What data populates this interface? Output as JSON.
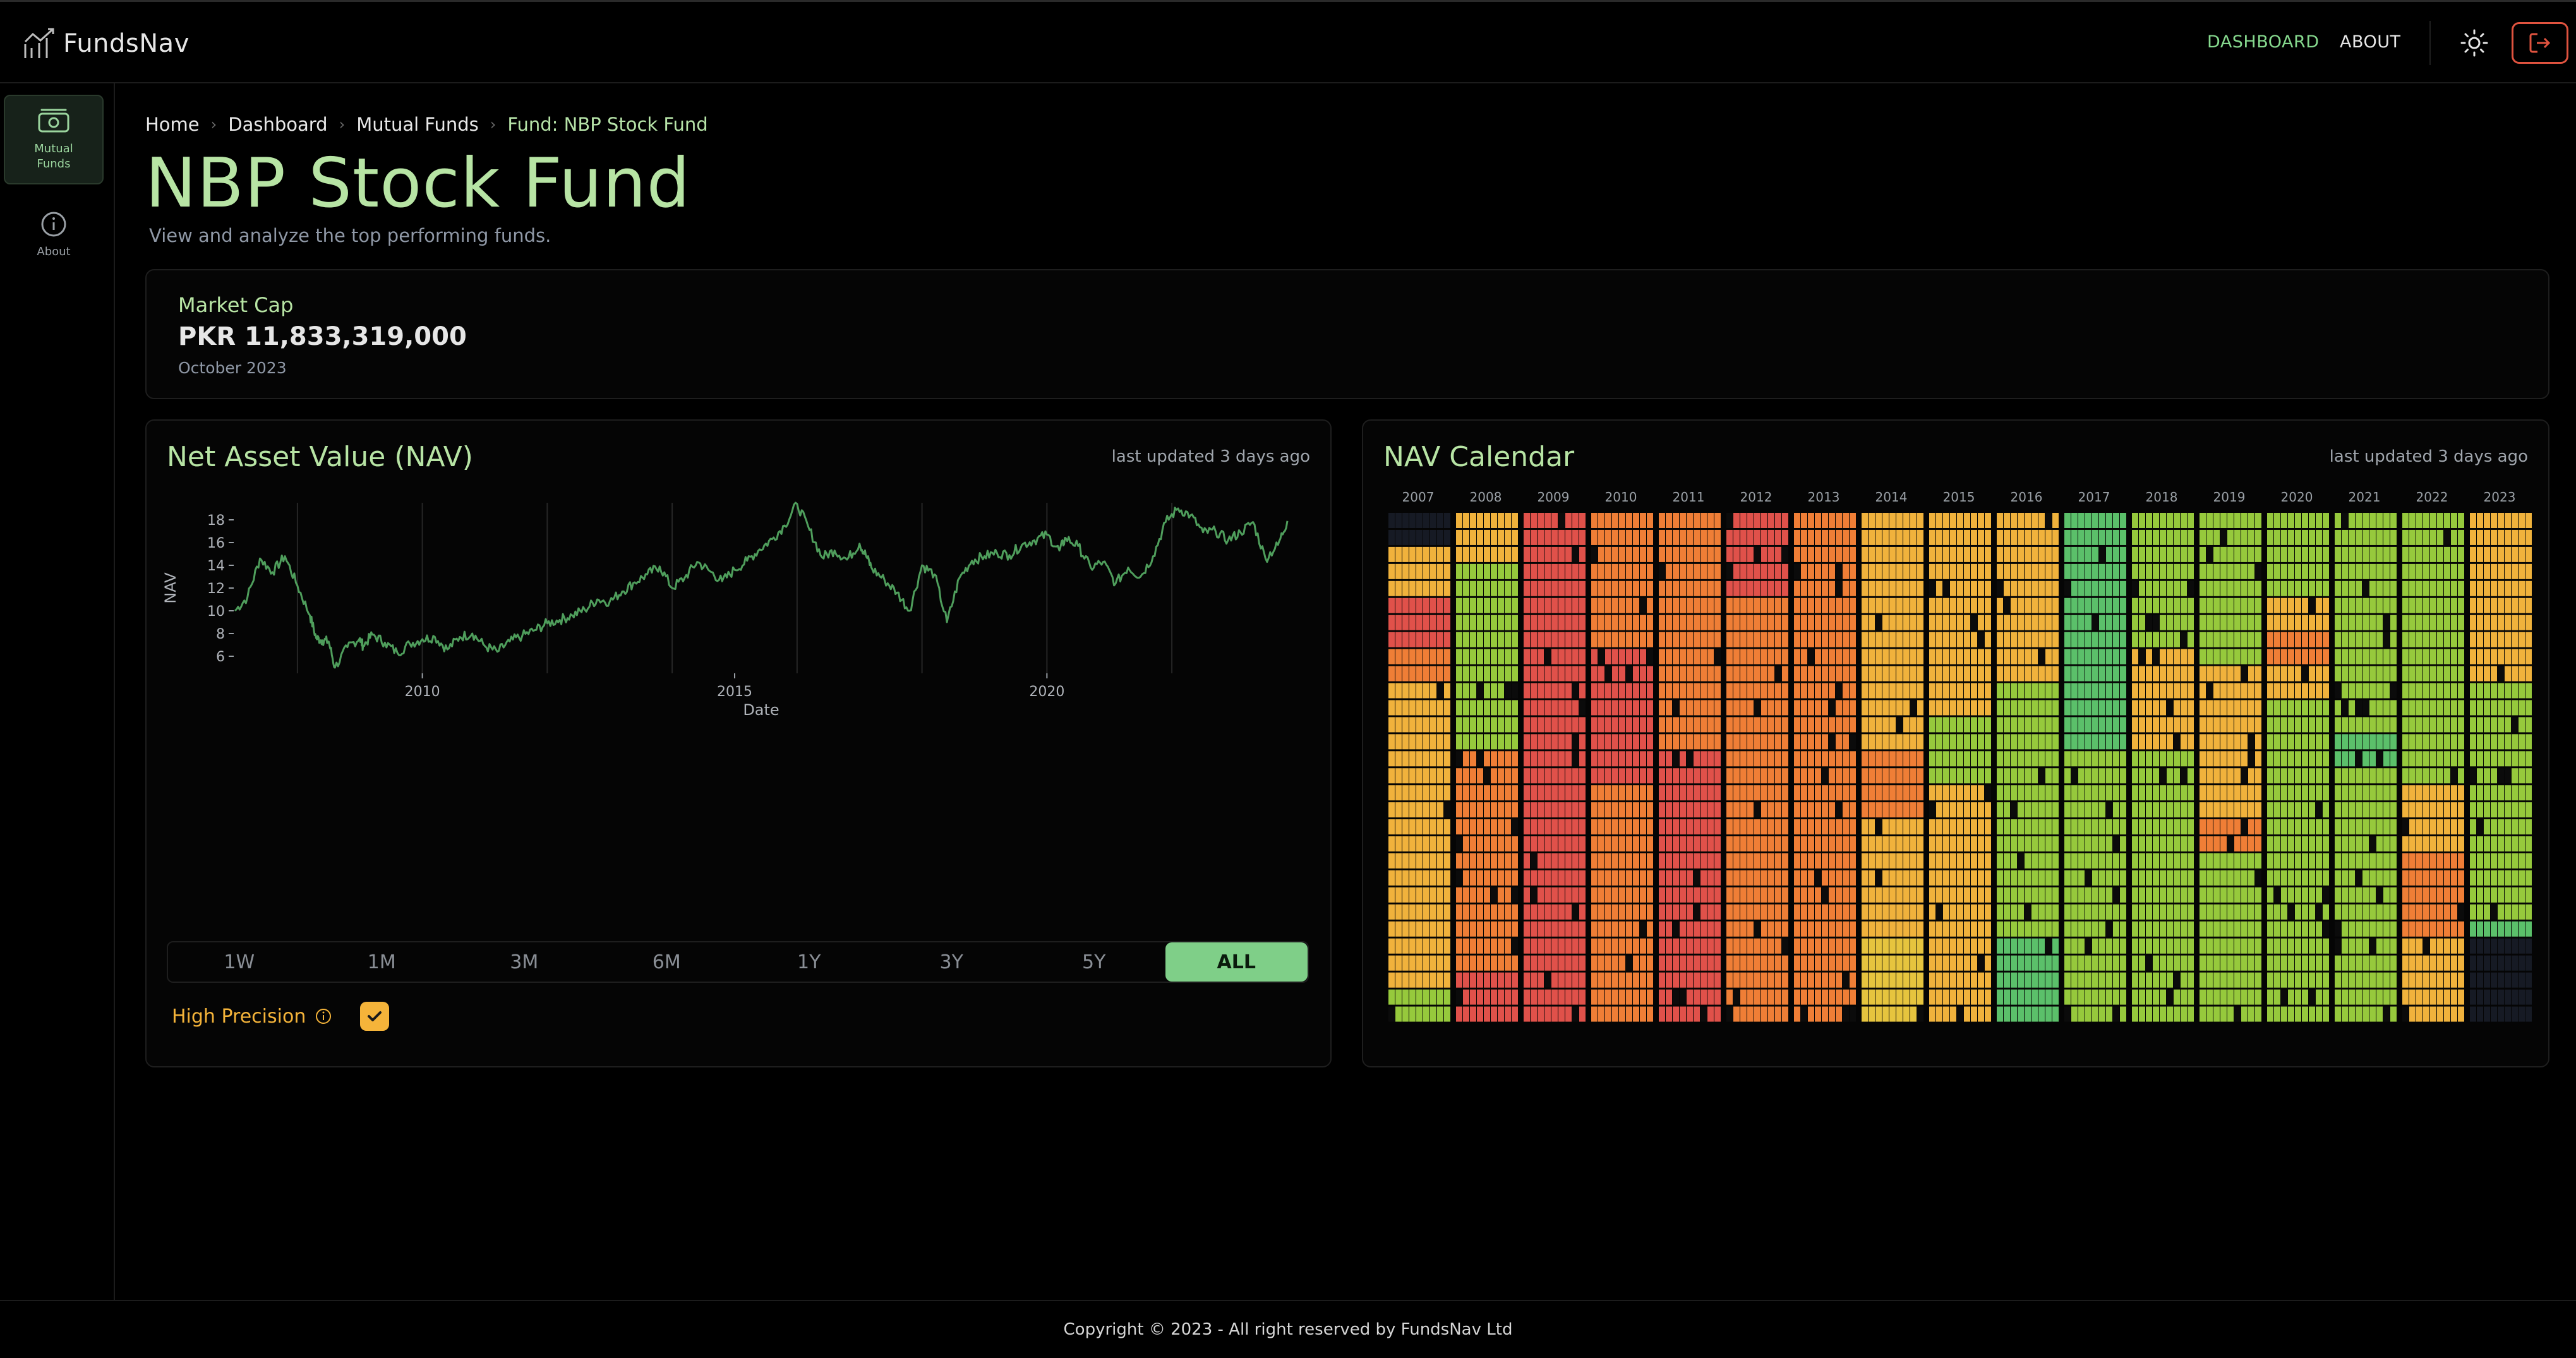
{
  "app": {
    "name": "FundsNav"
  },
  "nav": {
    "dashboard": "DASHBOARD",
    "about": "ABOUT"
  },
  "sidebar": {
    "items": [
      {
        "label_line1": "Mutual",
        "label_line2": "Funds",
        "icon": "money-icon"
      },
      {
        "label_line1": "About",
        "icon": "info-icon"
      }
    ]
  },
  "breadcrumb": [
    "Home",
    "Dashboard",
    "Mutual Funds",
    "Fund: NBP Stock Fund"
  ],
  "page": {
    "title": "NBP Stock Fund",
    "subtitle": "View and analyze the top performing funds."
  },
  "market_cap": {
    "label": "Market Cap",
    "value": "PKR 11,833,319,000",
    "date": "October 2023"
  },
  "nav_card": {
    "title": "Net Asset Value (NAV)",
    "updated": "last updated 3 days ago",
    "ranges": [
      "1W",
      "1M",
      "3M",
      "6M",
      "1Y",
      "3Y",
      "5Y",
      "ALL"
    ],
    "active_range": "ALL",
    "high_precision_label": "High Precision",
    "high_precision_checked": true
  },
  "calendar_card": {
    "title": "NAV Calendar",
    "updated": "last updated 3 days ago",
    "years": [
      "2007",
      "2008",
      "2009",
      "2010",
      "2011",
      "2012",
      "2013",
      "2014",
      "2015",
      "2016",
      "2017",
      "2018",
      "2019",
      "2020",
      "2021",
      "2022",
      "2023"
    ],
    "colors": {
      "red": "#e0514a",
      "orange": "#ef7e36",
      "amber": "#f0b23c",
      "yellow": "#e6c43e",
      "lime": "#96c93c",
      "green": "#5bc06a",
      "empty": "#161a24"
    }
  },
  "chart_data": {
    "type": "line",
    "title": "",
    "xlabel": "Date",
    "ylabel": "NAV",
    "x_ticks": [
      "2010",
      "2015",
      "2020"
    ],
    "y_ticks": [
      6,
      8,
      10,
      12,
      14,
      16,
      18
    ],
    "xlim": [
      2007.0,
      2023.85
    ],
    "ylim": [
      4.5,
      19.5
    ],
    "line_color": "#4f9e5c",
    "series": [
      {
        "x": [
          2007.0,
          2007.2,
          2007.4,
          2007.6,
          2007.8,
          2008.0,
          2008.2,
          2008.3,
          2008.4,
          2008.5,
          2008.6,
          2008.8,
          2009.0,
          2009.05,
          2009.2,
          2009.4,
          2009.6,
          2009.8,
          2010.0,
          2010.2,
          2010.4,
          2010.6,
          2010.8,
          2011.0,
          2011.2,
          2011.4,
          2011.6,
          2011.8,
          2012.0,
          2012.2,
          2012.4,
          2012.6,
          2012.8,
          2013.0,
          2013.2,
          2013.4,
          2013.6,
          2013.8,
          2014.0,
          2014.2,
          2014.4,
          2014.6,
          2014.8,
          2015.0,
          2015.2,
          2015.4,
          2015.6,
          2015.8,
          2016.0,
          2016.2,
          2016.4,
          2016.6,
          2016.8,
          2017.0,
          2017.1,
          2017.2,
          2017.4,
          2017.6,
          2017.8,
          2018.0,
          2018.2,
          2018.4,
          2018.6,
          2018.8,
          2019.0,
          2019.2,
          2019.4,
          2019.6,
          2019.8,
          2020.0,
          2020.2,
          2020.3,
          2020.5,
          2020.7,
          2020.9,
          2021.1,
          2021.3,
          2021.5,
          2021.7,
          2021.9,
          2022.1,
          2022.3,
          2022.5,
          2022.7,
          2022.9,
          2023.1,
          2023.3,
          2023.5,
          2023.7,
          2023.85
        ],
        "y": [
          10.0,
          11.2,
          14.6,
          13.4,
          14.8,
          12.2,
          9.6,
          7.6,
          7.4,
          7.3,
          5.0,
          6.8,
          7.6,
          6.9,
          7.9,
          7.2,
          6.3,
          7.1,
          7.5,
          7.7,
          6.6,
          7.7,
          8.0,
          6.9,
          6.4,
          7.3,
          7.8,
          8.3,
          8.9,
          9.2,
          9.6,
          10.1,
          11.0,
          10.8,
          11.7,
          12.5,
          13.2,
          13.9,
          12.0,
          12.9,
          14.3,
          13.5,
          12.6,
          13.6,
          14.4,
          15.4,
          16.3,
          17.5,
          19.4,
          17.1,
          14.7,
          15.3,
          14.5,
          15.9,
          14.9,
          13.7,
          12.7,
          11.6,
          10.0,
          14.0,
          13.2,
          9.0,
          12.9,
          14.4,
          14.8,
          15.1,
          14.9,
          15.8,
          16.2,
          16.7,
          15.3,
          16.4,
          15.7,
          13.8,
          14.3,
          12.4,
          13.8,
          13.0,
          14.8,
          17.8,
          19.0,
          18.4,
          16.9,
          17.0,
          16.2,
          16.9,
          17.8,
          14.6,
          15.8,
          17.9
        ]
      }
    ]
  }
}
